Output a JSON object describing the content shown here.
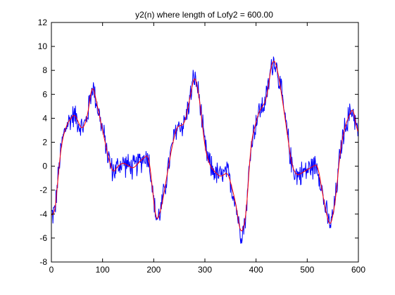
{
  "chart_data": {
    "type": "line",
    "title": "y2(n) where length of Lofy2 = 600.00",
    "xlabel": "",
    "ylabel": "",
    "xlim": [
      0,
      600
    ],
    "ylim": [
      -8,
      12
    ],
    "x_ticks": [
      0,
      100,
      200,
      300,
      400,
      500,
      600
    ],
    "y_ticks": [
      -8,
      -6,
      -4,
      -2,
      0,
      2,
      4,
      6,
      8,
      10,
      12
    ],
    "grid": false,
    "legend": "none",
    "n_points": 600,
    "series": [
      {
        "color": "#0000ff",
        "description": "noisy signal",
        "noise_amplitude": 0.9,
        "values": []
      },
      {
        "color": "#ff0000",
        "description": "smoothed signal",
        "keypoints": [
          [
            0,
            -3.6
          ],
          [
            5,
            -4.5
          ],
          [
            10,
            -2.5
          ],
          [
            15,
            0.0
          ],
          [
            20,
            2.0
          ],
          [
            30,
            3.5
          ],
          [
            45,
            4.4
          ],
          [
            60,
            3.0
          ],
          [
            70,
            4.0
          ],
          [
            80,
            7.0
          ],
          [
            90,
            5.0
          ],
          [
            100,
            3.0
          ],
          [
            110,
            1.0
          ],
          [
            120,
            -0.6
          ],
          [
            130,
            0.0
          ],
          [
            140,
            0.3
          ],
          [
            160,
            -0.2
          ],
          [
            175,
            0.5
          ],
          [
            190,
            1.0
          ],
          [
            205,
            -4.8
          ],
          [
            215,
            -3.5
          ],
          [
            225,
            -1.0
          ],
          [
            235,
            1.5
          ],
          [
            245,
            3.3
          ],
          [
            260,
            3.5
          ],
          [
            270,
            5.5
          ],
          [
            280,
            7.8
          ],
          [
            290,
            5.5
          ],
          [
            300,
            1.5
          ],
          [
            310,
            0.0
          ],
          [
            320,
            -0.5
          ],
          [
            330,
            -0.9
          ],
          [
            345,
            -0.5
          ],
          [
            360,
            -3.0
          ],
          [
            370,
            -5.8
          ],
          [
            380,
            -4.5
          ],
          [
            390,
            2.0
          ],
          [
            405,
            4.5
          ],
          [
            420,
            5.5
          ],
          [
            432,
            9.0
          ],
          [
            440,
            8.5
          ],
          [
            450,
            6.0
          ],
          [
            460,
            3.0
          ],
          [
            470,
            0.0
          ],
          [
            480,
            -0.8
          ],
          [
            500,
            -0.3
          ],
          [
            520,
            0.2
          ],
          [
            535,
            -3.5
          ],
          [
            545,
            -5.2
          ],
          [
            555,
            -3.0
          ],
          [
            565,
            1.5
          ],
          [
            575,
            3.5
          ],
          [
            590,
            5.0
          ],
          [
            595,
            3.5
          ],
          [
            600,
            2.0
          ]
        ]
      }
    ]
  }
}
